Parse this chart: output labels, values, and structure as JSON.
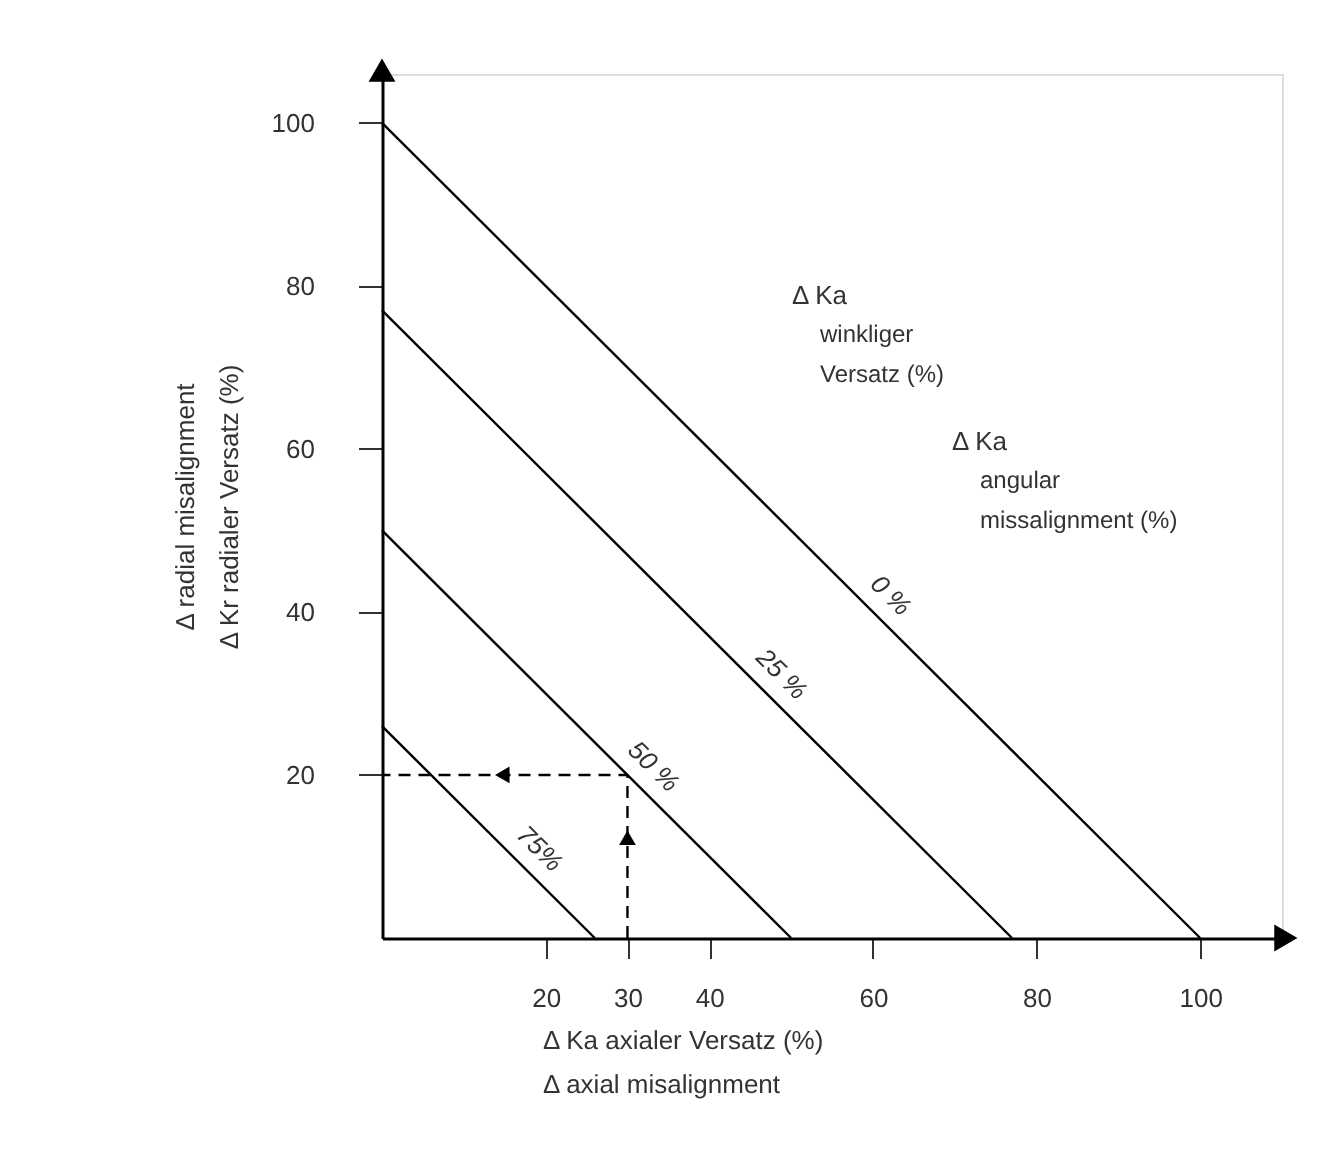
{
  "chart_data": {
    "type": "line",
    "xlabel": "Δ Ka axialer Versatz (%)\nΔ axial misalignment",
    "ylabel": "Δ radial misalignment\nΔ Kr radialer Versatz (%)",
    "xlim": [
      0,
      110
    ],
    "ylim": [
      0,
      106
    ],
    "xticks": [
      20,
      30,
      40,
      60,
      80,
      100
    ],
    "yticks": [
      20,
      40,
      60,
      80,
      100
    ],
    "marker": "none",
    "series": [
      {
        "name": "0 %",
        "color": "#000000",
        "x": [
          0,
          100
        ],
        "values": [
          100,
          0
        ]
      },
      {
        "name": "25 %",
        "color": "#000000",
        "x": [
          0,
          77
        ],
        "values": [
          77,
          0
        ]
      },
      {
        "name": "50 %",
        "color": "#000000",
        "x": [
          0,
          50
        ],
        "values": [
          50,
          0
        ]
      },
      {
        "name": "75%",
        "color": "#000000",
        "x": [
          0,
          26
        ],
        "values": [
          26,
          0
        ]
      },
      {
        "color": "#000000",
        "line_style": "dashed",
        "x": [
          30,
          30,
          0
        ],
        "values": [
          0,
          20,
          20
        ]
      }
    ],
    "annotations": [
      "Δ Ka\nwinkliger\nVersatz (%)",
      "Δ Ka\nangular\nmissalignment (%)"
    ]
  }
}
